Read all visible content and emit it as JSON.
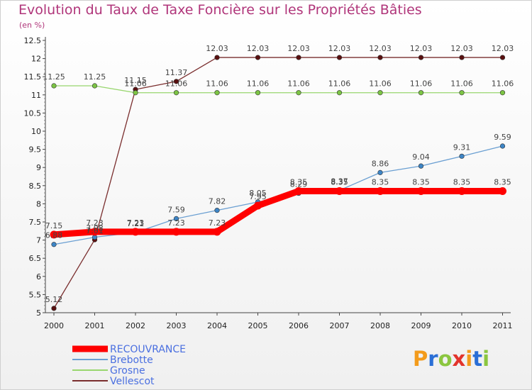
{
  "header": {
    "title": "Evolution du Taux de Taxe Foncière sur les Propriétés Bâties",
    "subtitle": "(en %)"
  },
  "logo": {
    "text": "Proxiti",
    "colors": [
      "#f39b1b",
      "#2b6fd6",
      "#8bc63f",
      "#e2342c",
      "#f39b1b",
      "#2b6fd6",
      "#8bc63f"
    ]
  },
  "chart_data": {
    "type": "line",
    "x": [
      2000,
      2001,
      2002,
      2003,
      2004,
      2005,
      2006,
      2007,
      2008,
      2009,
      2010,
      2011
    ],
    "ylim": [
      5,
      12.5
    ],
    "yticks": [
      "5",
      "5.5",
      "6",
      "6.5",
      "7",
      "7.5",
      "8",
      "8.5",
      "9",
      "9.5",
      "10",
      "10.5",
      "11",
      "11.5",
      "12",
      "12.5"
    ],
    "grid": false,
    "legend_position": "bottom-left",
    "series": [
      {
        "name": "Vellescot",
        "color": "#7a2e2e",
        "marker": "#5a1010",
        "values": [
          5.12,
          7.01,
          11.15,
          11.37,
          12.03,
          12.03,
          12.03,
          12.03,
          12.03,
          12.03,
          12.03,
          12.03
        ],
        "labels": [
          "5.12",
          "7.01",
          "11.15",
          "11.37",
          "12.03",
          "12.03",
          "12.03",
          "12.03",
          "12.03",
          "12.03",
          "12.03",
          "12.03"
        ]
      },
      {
        "name": "Grosne",
        "color": "#98d66e",
        "marker": "#7cc444",
        "values": [
          11.25,
          11.25,
          11.06,
          11.06,
          11.06,
          11.06,
          11.06,
          11.06,
          11.06,
          11.06,
          11.06,
          11.06
        ],
        "labels": [
          "11.25",
          "11.25",
          "11.06",
          "11.06",
          "11.06",
          "11.06",
          "11.06",
          "11.06",
          "11.06",
          "11.06",
          "11.06",
          "11.06"
        ]
      },
      {
        "name": "Brebotte",
        "color": "#6a9fd2",
        "marker": "#3d85c6",
        "values": [
          6.88,
          7.08,
          7.21,
          7.59,
          7.82,
          8.05,
          8.29,
          8.37,
          8.86,
          9.04,
          9.31,
          9.59
        ],
        "labels": [
          "6.88",
          "7.08",
          "7.21",
          "7.59",
          "7.82",
          "8.05",
          "8.29",
          "8.37",
          "8.86",
          "9.04",
          "9.31",
          "9.59"
        ]
      },
      {
        "name": "RECOUVRANCE",
        "color": "#ff0000",
        "marker": "#ff0000",
        "values": [
          7.15,
          7.23,
          7.23,
          7.23,
          7.23,
          7.95,
          8.35,
          8.35,
          8.35,
          8.35,
          8.35,
          8.35
        ],
        "labels": [
          "7.15",
          "7.23",
          "7.23",
          "7.23",
          "7.23",
          "7.95",
          "8.35",
          "8.35",
          "8.35",
          "8.35",
          "8.35",
          "8.35"
        ]
      }
    ],
    "legend_order": [
      "RECOUVRANCE",
      "Brebotte",
      "Grosne",
      "Vellescot"
    ]
  }
}
